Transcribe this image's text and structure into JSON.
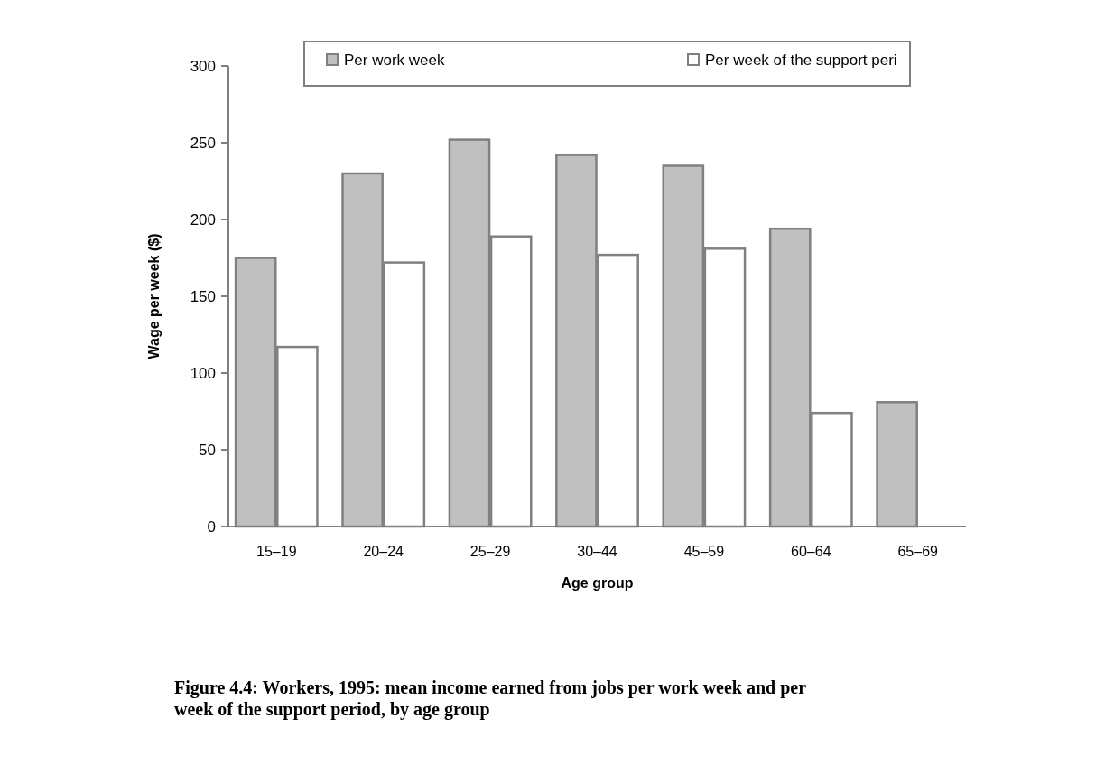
{
  "chart_data": {
    "type": "bar",
    "xlabel": "Age group",
    "ylabel": "Wage per week ($)",
    "categories": [
      "15–19",
      "20–24",
      "25–29",
      "30–44",
      "45–59",
      "60–64",
      "65–69"
    ],
    "series": [
      {
        "name": "Per work week",
        "color": "#c0c0c0",
        "values": [
          175,
          230,
          252,
          242,
          235,
          194,
          81
        ]
      },
      {
        "name": "Per week of the support peri",
        "color": "#ffffff",
        "values": [
          117,
          172,
          189,
          177,
          181,
          74,
          null
        ]
      }
    ],
    "ylim": [
      0,
      300
    ],
    "yticks": [
      0,
      50,
      100,
      150,
      200,
      250,
      300
    ],
    "legend": "top",
    "annotations": [
      "Figure 4.4: Workers, 1995: mean income earned from jobs per work week and per week of the support period, by age group"
    ]
  }
}
